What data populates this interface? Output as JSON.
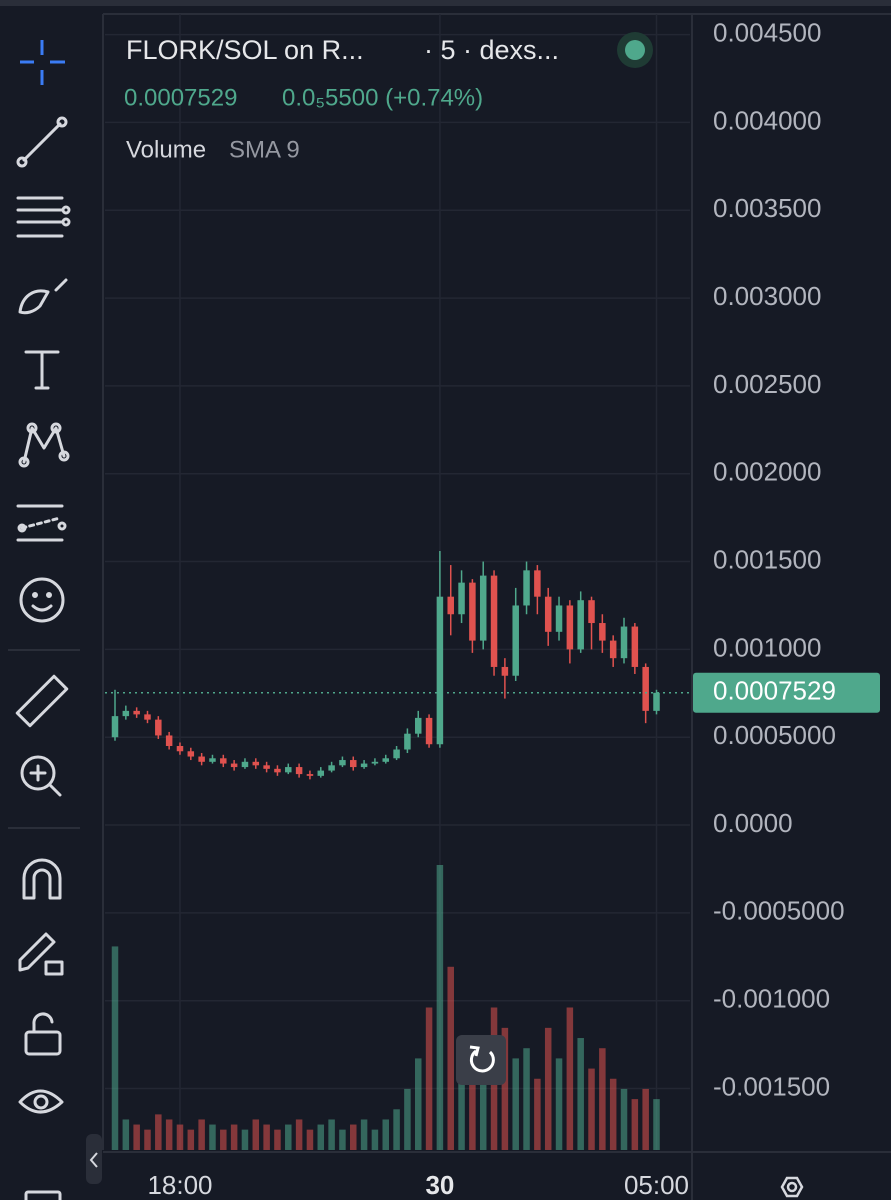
{
  "chart_data": {
    "type": "candlestick",
    "title": "FLORK/SOL on R...",
    "interval": "· 5 · dexs...",
    "change": "0.0₅5500 (+0.74%)",
    "volume_title": "Volume",
    "volume_study": "SMA 9",
    "categories": [
      null,
      null,
      null,
      null,
      null,
      null,
      "18:00",
      null,
      null,
      null,
      null,
      null,
      null,
      null,
      null,
      null,
      null,
      null,
      null,
      null,
      null,
      null,
      null,
      null,
      null,
      null,
      null,
      null,
      null,
      null,
      "30",
      null,
      null,
      null,
      null,
      null,
      null,
      null,
      null,
      null,
      null,
      null,
      null,
      null,
      null,
      null,
      null,
      null,
      null,
      null,
      "05:00"
    ],
    "open": [
      0.0005,
      0.00062,
      0.00065,
      0.00063,
      0.0006,
      0.00051,
      0.00045,
      0.00042,
      0.00039,
      0.00036,
      0.00038,
      0.00035,
      0.00033,
      0.00036,
      0.00034,
      0.00032,
      0.0003,
      0.00033,
      0.00029,
      0.00028,
      0.00031,
      0.00034,
      0.00037,
      0.00033,
      0.00035,
      0.00036,
      0.00038,
      0.00043,
      0.00052,
      0.00061,
      0.00046,
      0.0013,
      0.0012,
      0.00138,
      0.00105,
      0.00142,
      0.0009,
      0.00085,
      0.00125,
      0.00145,
      0.0013,
      0.0011,
      0.00125,
      0.001,
      0.00128,
      0.00115,
      0.00105,
      0.00095,
      0.00113,
      0.0009,
      0.00065
    ],
    "high": [
      0.00077,
      0.00068,
      0.00067,
      0.00065,
      0.00062,
      0.00053,
      0.00047,
      0.00044,
      0.00041,
      0.0004,
      0.0004,
      0.00037,
      0.00038,
      0.00038,
      0.00036,
      0.00034,
      0.00035,
      0.00035,
      0.00031,
      0.00033,
      0.00036,
      0.00039,
      0.00039,
      0.00037,
      0.00038,
      0.0004,
      0.00045,
      0.00055,
      0.00065,
      0.00063,
      0.00156,
      0.00148,
      0.00145,
      0.0014,
      0.0015,
      0.00145,
      0.00095,
      0.00135,
      0.0015,
      0.00148,
      0.00135,
      0.0013,
      0.00128,
      0.00133,
      0.0013,
      0.0012,
      0.00108,
      0.00118,
      0.00115,
      0.00092,
      0.00077
    ],
    "low": [
      0.00048,
      0.0006,
      0.00061,
      0.00058,
      0.00049,
      0.00043,
      0.0004,
      0.00037,
      0.00034,
      0.00035,
      0.00033,
      0.00031,
      0.00032,
      0.00032,
      0.0003,
      0.00028,
      0.00029,
      0.00027,
      0.00026,
      0.00027,
      0.0003,
      0.00033,
      0.00031,
      0.00032,
      0.00034,
      0.00035,
      0.00037,
      0.00041,
      0.0005,
      0.00044,
      0.00044,
      0.00108,
      0.00115,
      0.00098,
      0.001,
      0.00085,
      0.00072,
      0.00082,
      0.0012,
      0.0012,
      0.00102,
      0.00105,
      0.00092,
      0.00098,
      0.001,
      0.00098,
      0.0009,
      0.00092,
      0.00086,
      0.00058,
      0.00063
    ],
    "close": [
      0.00062,
      0.00065,
      0.00063,
      0.0006,
      0.00051,
      0.00045,
      0.00042,
      0.00039,
      0.00036,
      0.00038,
      0.00035,
      0.00033,
      0.00036,
      0.00034,
      0.00032,
      0.0003,
      0.00033,
      0.00029,
      0.00028,
      0.00031,
      0.00034,
      0.00037,
      0.00033,
      0.00035,
      0.00036,
      0.00038,
      0.00043,
      0.00052,
      0.00061,
      0.00046,
      0.0013,
      0.0012,
      0.00138,
      0.00105,
      0.00142,
      0.0009,
      0.00085,
      0.00125,
      0.00145,
      0.0013,
      0.0011,
      0.00125,
      0.001,
      0.00128,
      0.00115,
      0.00105,
      0.00095,
      0.00113,
      0.0009,
      0.00065,
      0.0007529
    ],
    "volume": [
      200,
      30,
      25,
      20,
      35,
      30,
      25,
      20,
      30,
      25,
      20,
      25,
      20,
      30,
      25,
      20,
      25,
      30,
      20,
      25,
      30,
      20,
      25,
      30,
      20,
      30,
      40,
      60,
      90,
      140,
      280,
      180,
      110,
      100,
      80,
      140,
      120,
      90,
      100,
      70,
      120,
      90,
      140,
      110,
      80,
      100,
      70,
      60,
      50,
      60,
      50
    ],
    "up_color": "#4fa88c",
    "down_color": "#e0524f",
    "ylim": [
      -0.00185,
      0.00464
    ],
    "yticks": [
      {
        "value": 0.0045,
        "label": "0.004500"
      },
      {
        "value": 0.004,
        "label": "0.004000"
      },
      {
        "value": 0.0035,
        "label": "0.003500"
      },
      {
        "value": 0.003,
        "label": "0.003000"
      },
      {
        "value": 0.0025,
        "label": "0.002500"
      },
      {
        "value": 0.002,
        "label": "0.002000"
      },
      {
        "value": 0.0015,
        "label": "0.001500"
      },
      {
        "value": 0.001,
        "label": "0.001000"
      },
      {
        "value": 0.0005,
        "label": "0.0005000"
      },
      {
        "value": 0,
        "label": "0.0000"
      },
      {
        "value": -0.0005,
        "label": "-0.0005000"
      },
      {
        "value": -0.001,
        "label": "-0.001000"
      },
      {
        "value": -0.0015,
        "label": "-0.001500"
      }
    ],
    "grid": true
  }
}
